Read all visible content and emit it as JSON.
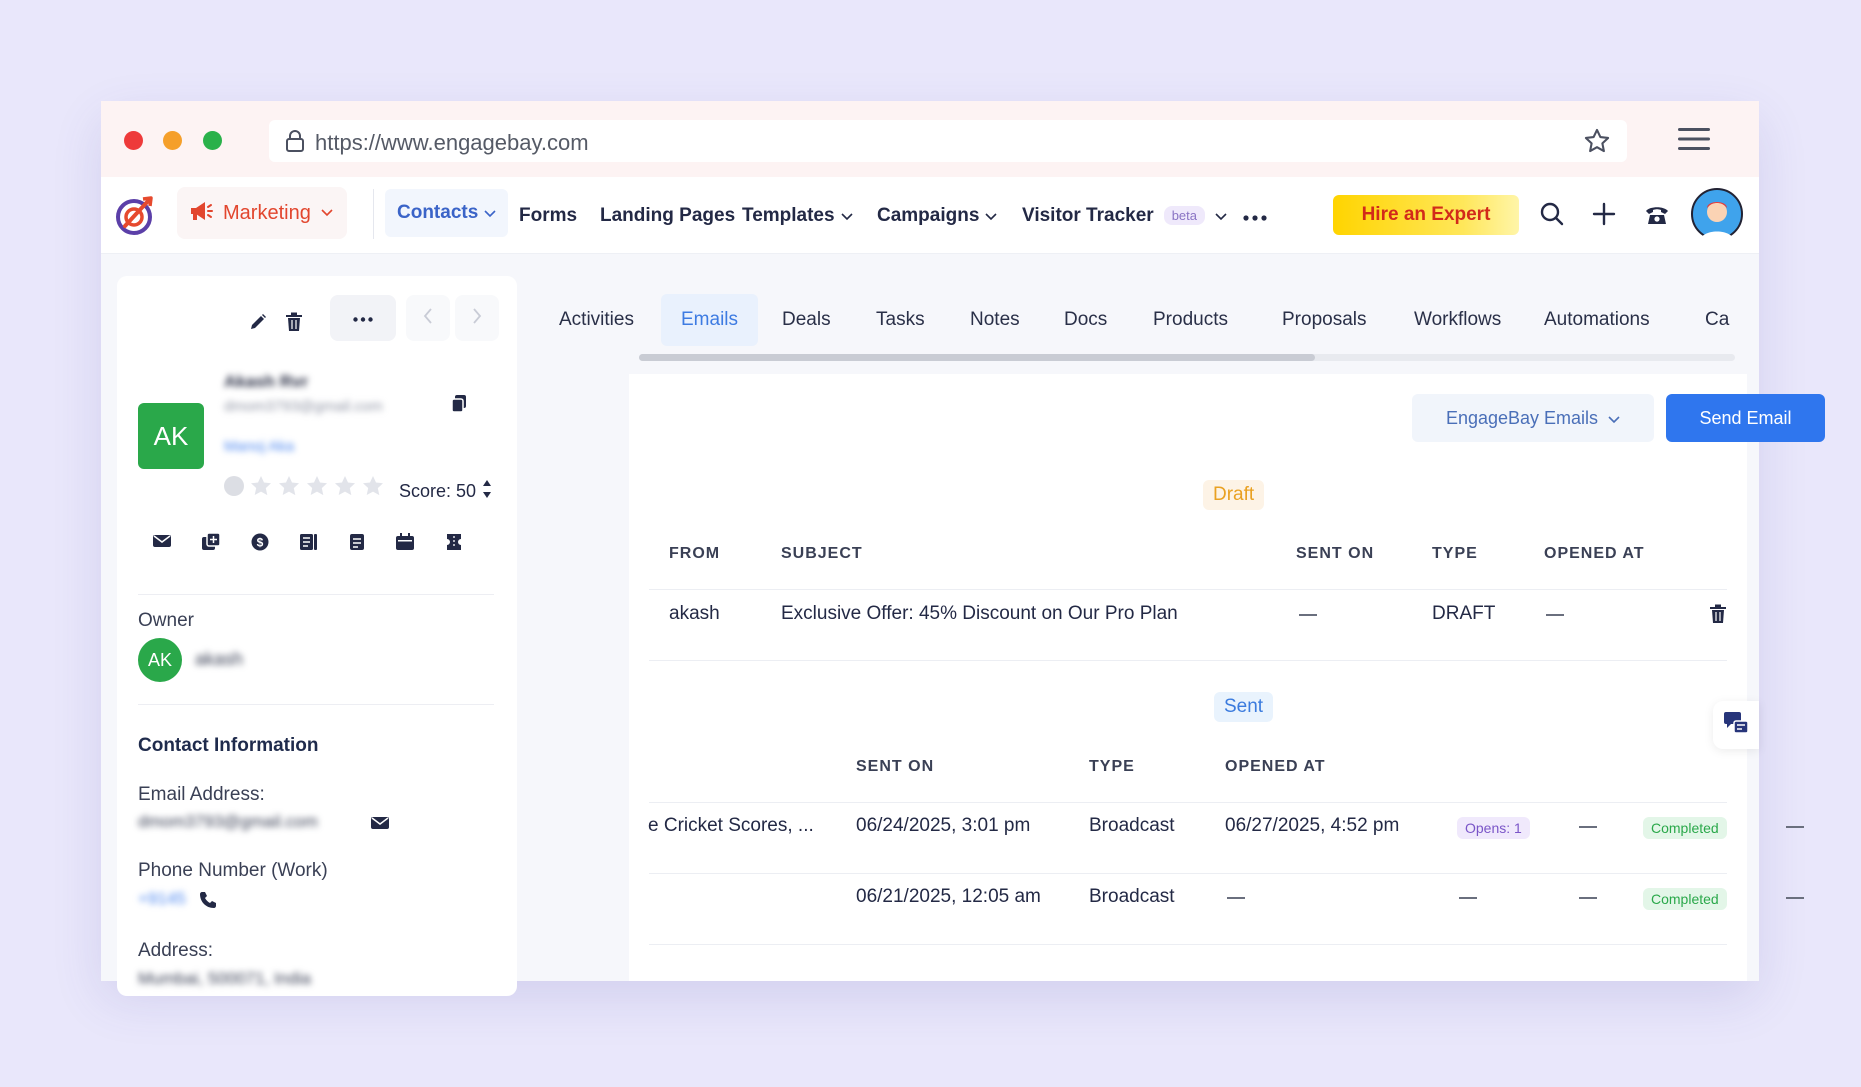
{
  "browser": {
    "url": "https://www.engagebay.com"
  },
  "nav": {
    "module": "Marketing",
    "items": [
      "Contacts",
      "Forms",
      "Landing Pages",
      "Templates",
      "Campaigns",
      "Visitor Tracker"
    ],
    "beta_label": "beta",
    "hire_label": "Hire an Expert"
  },
  "contact": {
    "initials": "AK",
    "name": "Akash Rvr",
    "email": "dmom3793@gmail.com",
    "company": "Manoj Aka",
    "score_label": "Score: 50",
    "owner_label": "Owner",
    "owner_initials": "AK",
    "owner_name": "akash",
    "section_title": "Contact Information",
    "email_label": "Email Address:",
    "email_value": "dmom3793@gmail.com",
    "phone_label": "Phone Number (Work)",
    "phone_value": "+9145",
    "address_label": "Address:",
    "address_value": "Mumbai, 500071, India"
  },
  "tabs": [
    "Activities",
    "Emails",
    "Deals",
    "Tasks",
    "Notes",
    "Docs",
    "Products",
    "Proposals",
    "Workflows",
    "Automations",
    "Ca"
  ],
  "emails": {
    "source_select": "EngageBay Emails",
    "send_label": "Send Email",
    "draft_label": "Draft",
    "sent_label": "Sent",
    "draft_headers": {
      "from": "FROM",
      "subject": "SUBJECT",
      "sent_on": "SENT ON",
      "type": "TYPE",
      "opened_at": "OPENED AT"
    },
    "draft_row": {
      "from": "akash",
      "subject": "Exclusive Offer: 45% Discount on Our Pro Plan",
      "type": "DRAFT"
    },
    "sent_headers": {
      "sent_on": "SENT ON",
      "type": "TYPE",
      "opened_at": "OPENED AT"
    },
    "sent_rows": [
      {
        "subject": "e Cricket Scores, ...",
        "sent_on": "06/24/2025, 3:01 pm",
        "type": "Broadcast",
        "opened_at": "06/27/2025, 4:52 pm",
        "opens": "Opens: 1",
        "status": "Completed"
      },
      {
        "subject": "",
        "sent_on": "06/21/2025, 12:05 am",
        "type": "Broadcast",
        "opened_at": "",
        "opens": "",
        "status": "Completed"
      }
    ]
  }
}
